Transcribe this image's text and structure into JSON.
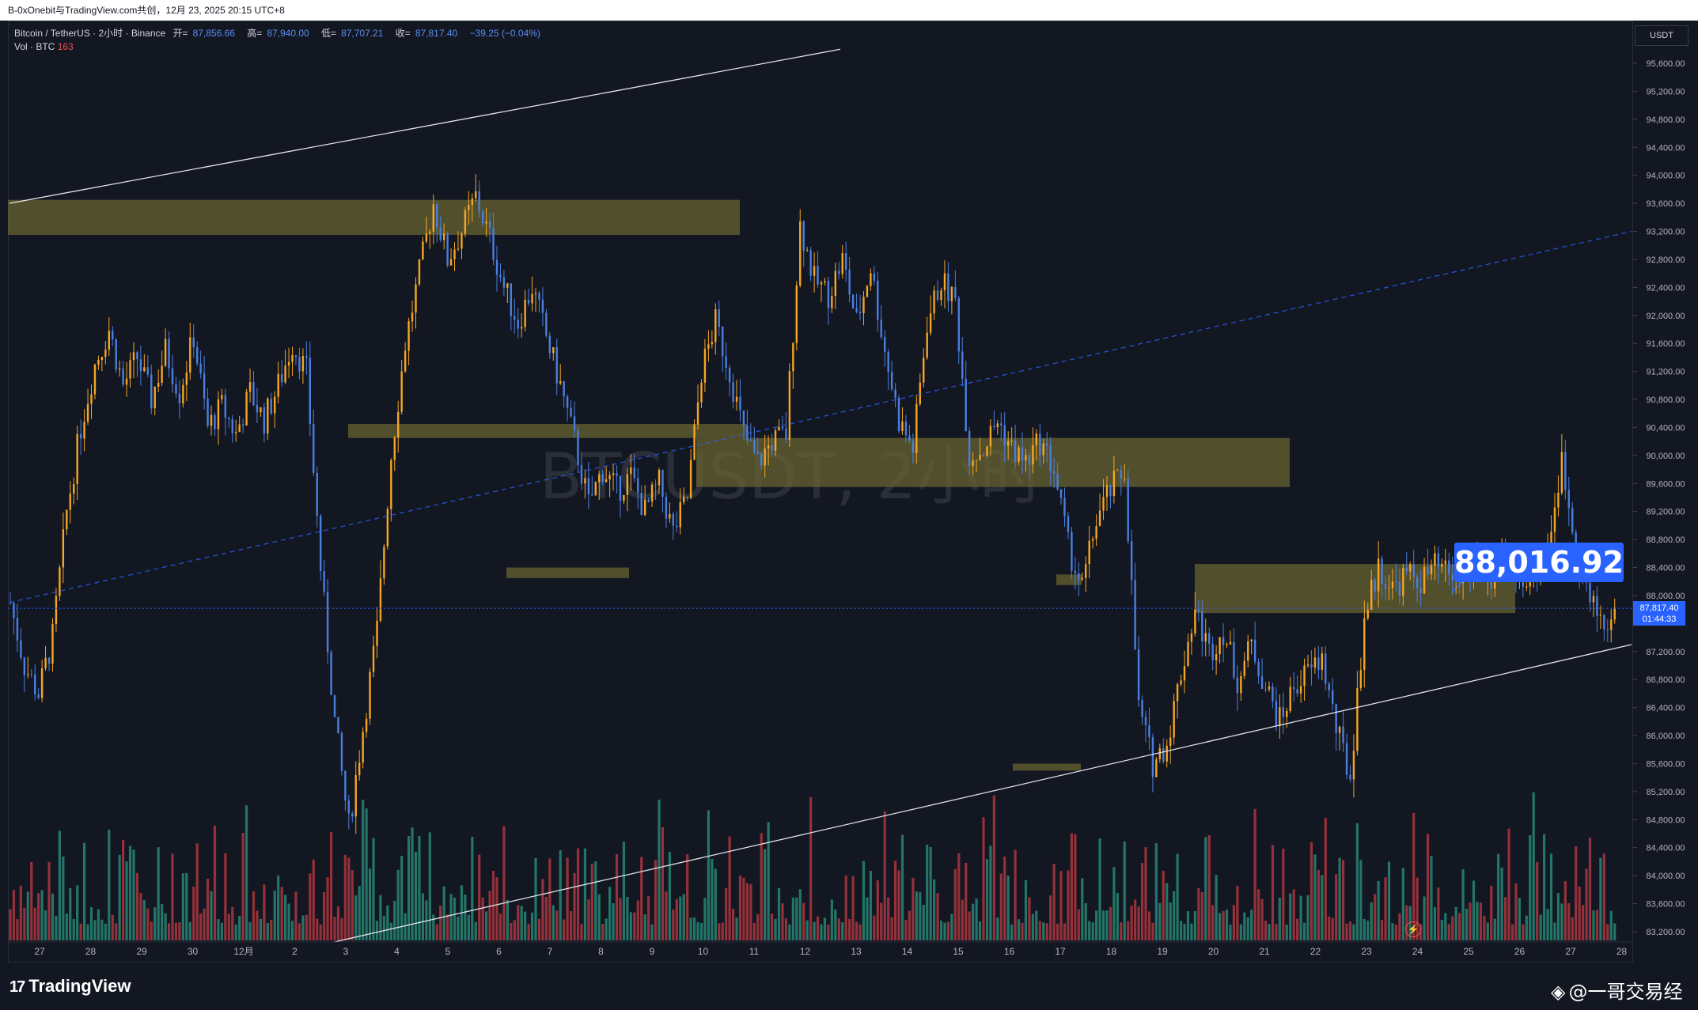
{
  "header": {
    "share_text": "B-0xOnebit与TradingView.com共创，12月 23, 2025 20:15 UTC+8"
  },
  "legend": {
    "symbol": "Bitcoin / TetherUS · 2小时 · Binance",
    "open_label": "开=",
    "open": "87,856.66",
    "high_label": "高=",
    "high": "87,940.00",
    "low_label": "低=",
    "low": "87,707.21",
    "close_label": "收=",
    "close": "87,817.40",
    "change": "−39.25 (−0.04%)",
    "volume_label": "Vol · BTC",
    "volume": "163"
  },
  "price_axis": {
    "currency": "USDT",
    "ticks": [
      "95,600.00",
      "95,200.00",
      "94,800.00",
      "94,400.00",
      "94,000.00",
      "93,600.00",
      "93,200.00",
      "92,800.00",
      "92,400.00",
      "92,000.00",
      "91,600.00",
      "91,200.00",
      "90,800.00",
      "90,400.00",
      "90,000.00",
      "89,600.00",
      "89,200.00",
      "88,800.00",
      "88,400.00",
      "88,000.00",
      "87,200.00",
      "86,800.00",
      "86,400.00",
      "86,000.00",
      "85,600.00",
      "85,200.00",
      "84,800.00",
      "84,400.00",
      "84,000.00",
      "83,600.00",
      "83,200.00"
    ],
    "last_price": "87,817.40",
    "countdown": "01:44:33"
  },
  "time_axis": {
    "ticks": [
      "27",
      "28",
      "29",
      "30",
      "12月",
      "2",
      "3",
      "4",
      "5",
      "6",
      "7",
      "8",
      "9",
      "10",
      "11",
      "12",
      "13",
      "14",
      "15",
      "16",
      "17",
      "18",
      "19",
      "20",
      "21",
      "22",
      "23",
      "24",
      "25",
      "26",
      "27",
      "28"
    ]
  },
  "annotation": {
    "price_callout": "88,016.92"
  },
  "branding": {
    "logo_text": "TradingView",
    "author": "@一哥交易经"
  },
  "colors": {
    "background": "#131722",
    "up": "#f5a623",
    "down": "#4a7fe0",
    "zone": "#6b6530",
    "vol_up": "#26806f",
    "vol_down": "#a3343d",
    "accent": "#2962ff"
  },
  "chart_data": {
    "type": "candlestick",
    "ylim": [
      83000,
      95800
    ],
    "price_path": [
      [
        0,
        87900
      ],
      [
        8,
        87000
      ],
      [
        16,
        86600
      ],
      [
        24,
        87400
      ],
      [
        32,
        89200
      ],
      [
        40,
        90400
      ],
      [
        48,
        91300
      ],
      [
        56,
        91800
      ],
      [
        64,
        91000
      ],
      [
        72,
        91400
      ],
      [
        80,
        90800
      ],
      [
        88,
        91500
      ],
      [
        96,
        90900
      ],
      [
        104,
        91700
      ],
      [
        112,
        90400
      ],
      [
        120,
        90700
      ],
      [
        128,
        90300
      ],
      [
        136,
        90900
      ],
      [
        144,
        90500
      ],
      [
        152,
        91000
      ],
      [
        160,
        91600
      ],
      [
        168,
        91200
      ],
      [
        176,
        88400
      ],
      [
        184,
        86200
      ],
      [
        192,
        84700
      ],
      [
        200,
        86100
      ],
      [
        208,
        87500
      ],
      [
        216,
        90000
      ],
      [
        224,
        91600
      ],
      [
        232,
        92600
      ],
      [
        240,
        93600
      ],
      [
        248,
        92800
      ],
      [
        256,
        93200
      ],
      [
        264,
        93700
      ],
      [
        272,
        93100
      ],
      [
        280,
        92400
      ],
      [
        288,
        91900
      ],
      [
        296,
        92400
      ],
      [
        304,
        91700
      ],
      [
        312,
        91000
      ],
      [
        320,
        90200
      ],
      [
        328,
        89300
      ],
      [
        336,
        89800
      ],
      [
        344,
        89500
      ],
      [
        352,
        89700
      ],
      [
        360,
        89200
      ],
      [
        368,
        89600
      ],
      [
        376,
        88900
      ],
      [
        384,
        89400
      ],
      [
        392,
        91200
      ],
      [
        400,
        91900
      ],
      [
        408,
        91200
      ],
      [
        416,
        90300
      ],
      [
        424,
        89900
      ],
      [
        432,
        90200
      ],
      [
        440,
        90300
      ],
      [
        448,
        93300
      ],
      [
        456,
        92500
      ],
      [
        464,
        92300
      ],
      [
        472,
        92800
      ],
      [
        480,
        91900
      ],
      [
        488,
        92700
      ],
      [
        496,
        91500
      ],
      [
        504,
        90500
      ],
      [
        512,
        90100
      ],
      [
        520,
        91900
      ],
      [
        528,
        92500
      ],
      [
        536,
        92200
      ],
      [
        544,
        90000
      ],
      [
        552,
        90100
      ],
      [
        560,
        90500
      ],
      [
        568,
        90100
      ],
      [
        576,
        89900
      ],
      [
        584,
        90200
      ],
      [
        592,
        89800
      ],
      [
        600,
        88700
      ],
      [
        608,
        88100
      ],
      [
        616,
        89100
      ],
      [
        624,
        89500
      ],
      [
        632,
        89800
      ],
      [
        640,
        86400
      ],
      [
        648,
        85600
      ],
      [
        656,
        85900
      ],
      [
        664,
        86900
      ],
      [
        672,
        87800
      ],
      [
        680,
        87200
      ],
      [
        688,
        87500
      ],
      [
        696,
        86800
      ],
      [
        704,
        87300
      ],
      [
        712,
        86700
      ],
      [
        720,
        86200
      ],
      [
        728,
        86700
      ],
      [
        736,
        86900
      ],
      [
        744,
        87100
      ],
      [
        752,
        86100
      ],
      [
        760,
        85400
      ],
      [
        768,
        87700
      ],
      [
        776,
        88400
      ],
      [
        784,
        88100
      ],
      [
        792,
        88300
      ],
      [
        800,
        88200
      ],
      [
        808,
        88400
      ],
      [
        816,
        88300
      ],
      [
        824,
        88200
      ],
      [
        832,
        88500
      ],
      [
        840,
        88100
      ],
      [
        848,
        88600
      ],
      [
        856,
        88300
      ],
      [
        864,
        88300
      ],
      [
        872,
        88700
      ],
      [
        880,
        89900
      ],
      [
        888,
        88700
      ],
      [
        896,
        87900
      ],
      [
        904,
        87600
      ],
      [
        912,
        87700
      ]
    ],
    "series": [
      {
        "values": [
          87900,
          87000,
          86600,
          87400,
          89200,
          90400,
          91300,
          91800,
          91000,
          91400,
          90800,
          91500,
          90900,
          91700,
          90400,
          90700,
          90300,
          90900,
          90500,
          91000,
          91600,
          91200,
          88400,
          86200,
          84700,
          86100,
          87500,
          90000,
          91600,
          92600,
          93600,
          92800,
          93200,
          93700,
          93100,
          92400,
          91900,
          92400,
          91700,
          91000,
          90200,
          89300,
          89800,
          89500,
          89700,
          89200,
          89600,
          88900,
          89400,
          91200,
          91900,
          91200,
          90300,
          89900,
          90200,
          90300,
          93300,
          92500,
          92300,
          92800,
          91900,
          92700,
          91500,
          90500,
          90100,
          91900,
          92500,
          92200,
          90000,
          90100,
          90500,
          90100,
          89900,
          90200,
          89800,
          88700,
          88100,
          89100,
          89500,
          89800,
          86400,
          85600,
          85900,
          86900,
          87800,
          87200,
          87500,
          86800,
          87300,
          86700,
          86200,
          86700,
          86900,
          87100,
          86100,
          85400,
          87700,
          88400,
          88100,
          88300,
          88200,
          88400,
          88300,
          88200,
          88500,
          88100,
          88600,
          88300,
          88300,
          88700,
          89900,
          88700,
          87900,
          87600,
          87700
        ]
      }
    ],
    "zones": [
      [
        93150,
        93650
      ],
      [
        90250,
        90450
      ],
      [
        89550,
        90250
      ],
      [
        88250,
        88400
      ],
      [
        87750,
        88450
      ],
      [
        88150,
        88300
      ],
      [
        85500,
        85600
      ]
    ],
    "trendlines": [
      {
        "style": "solid",
        "from": [
          0,
          93600
        ],
        "to": [
          1050,
          95800
        ]
      },
      {
        "style": "dashed",
        "from": [
          0,
          87900
        ],
        "to": [
          2050,
          93200
        ]
      },
      {
        "style": "solid",
        "from": [
          390,
          83000
        ],
        "to": [
          2050,
          87300
        ]
      }
    ]
  }
}
